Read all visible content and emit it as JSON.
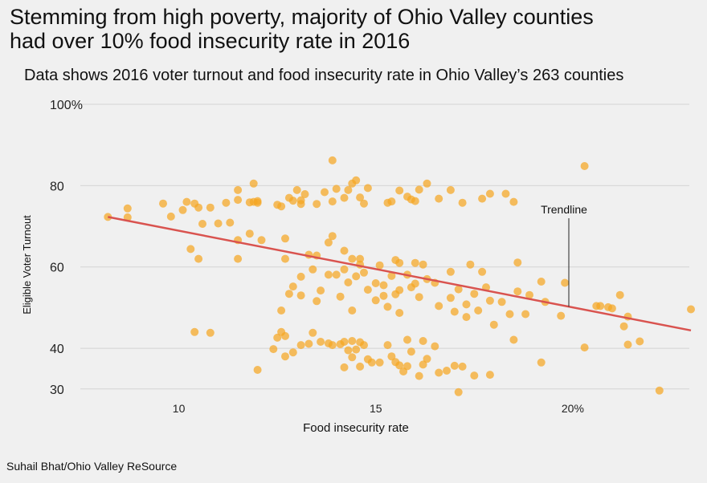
{
  "header": {
    "title_line1": "Stemming from high poverty, majority of Ohio Valley counties",
    "title_line2": "had over 10% food insecurity rate in 2016",
    "subtitle": "Data shows 2016 voter turnout and food insecurity rate in Ohio Valley’s 263 counties"
  },
  "footer": {
    "credit": "Suhail Bhat/Ohio Valley ReSource"
  },
  "colors": {
    "point": "#f5a623",
    "trendline": "#d9534f",
    "grid": "#d4d4d4"
  },
  "chart_data": {
    "type": "scatter",
    "title": "Stemming from high poverty, majority of Ohio Valley counties had over 10% food insecurity rate in 2016",
    "subtitle": "Data shows 2016 voter turnout and food insecurity rate in Ohio Valley’s 263 counties",
    "xlabel": "Food insecurity rate",
    "ylabel": "Eligible Voter Turnout",
    "xlim": [
      7.5,
      23
    ],
    "ylim": [
      27,
      100
    ],
    "x_ticks": [
      {
        "value": 10,
        "label": "10"
      },
      {
        "value": 15,
        "label": "15"
      },
      {
        "value": 20,
        "label": "20%"
      }
    ],
    "y_ticks": [
      {
        "value": 30,
        "label": "30"
      },
      {
        "value": 40,
        "label": "40"
      },
      {
        "value": 60,
        "label": "60"
      },
      {
        "value": 80,
        "label": "80"
      },
      {
        "value": 100,
        "label": "100%"
      }
    ],
    "trendline": {
      "label": "Trendline",
      "x": [
        8.2,
        23
      ],
      "y": [
        72.3,
        44.4
      ],
      "annotation_x": 19.9
    },
    "points": [
      [
        8.2,
        72.3
      ],
      [
        8.7,
        74.4
      ],
      [
        8.7,
        72.2
      ],
      [
        9.6,
        75.6
      ],
      [
        9.8,
        72.4
      ],
      [
        10.1,
        74.0
      ],
      [
        10.2,
        76.0
      ],
      [
        10.4,
        75.6
      ],
      [
        10.5,
        74.6
      ],
      [
        10.6,
        70.6
      ],
      [
        10.8,
        74.6
      ],
      [
        11.0,
        70.7
      ],
      [
        11.2,
        75.8
      ],
      [
        11.3,
        70.9
      ],
      [
        11.5,
        76.5
      ],
      [
        11.5,
        78.9
      ],
      [
        11.8,
        75.9
      ],
      [
        11.9,
        76.0
      ],
      [
        11.9,
        80.5
      ],
      [
        12.0,
        75.8
      ],
      [
        12.0,
        76.2
      ],
      [
        12.1,
        66.6
      ],
      [
        10.3,
        64.4
      ],
      [
        10.5,
        62.0
      ],
      [
        11.5,
        62.0
      ],
      [
        11.5,
        66.6
      ],
      [
        11.8,
        68.2
      ],
      [
        12.7,
        62.0
      ],
      [
        12.7,
        67.0
      ],
      [
        13.3,
        63.0
      ],
      [
        13.5,
        62.8
      ],
      [
        13.8,
        66.0
      ],
      [
        13.9,
        67.6
      ],
      [
        14.2,
        64.0
      ],
      [
        14.4,
        62.0
      ],
      [
        14.6,
        62.0
      ],
      [
        12.6,
        74.9
      ],
      [
        12.8,
        77.0
      ],
      [
        13.0,
        78.9
      ],
      [
        13.1,
        75.5
      ],
      [
        13.2,
        77.9
      ],
      [
        13.5,
        75.5
      ],
      [
        13.7,
        78.4
      ],
      [
        13.9,
        76.1
      ],
      [
        14.0,
        79.2
      ],
      [
        14.2,
        77.0
      ],
      [
        14.4,
        80.5
      ],
      [
        14.5,
        81.3
      ],
      [
        14.6,
        77.1
      ],
      [
        14.8,
        79.4
      ],
      [
        15.3,
        75.8
      ],
      [
        15.4,
        76.1
      ],
      [
        15.6,
        78.8
      ],
      [
        15.8,
        77.3
      ],
      [
        16.0,
        76.2
      ],
      [
        16.1,
        79.0
      ],
      [
        16.3,
        80.5
      ],
      [
        16.6,
        76.8
      ],
      [
        16.9,
        78.9
      ],
      [
        17.2,
        75.8
      ],
      [
        17.7,
        76.8
      ],
      [
        17.9,
        78.0
      ],
      [
        18.3,
        78.0
      ],
      [
        18.5,
        76.0
      ],
      [
        12.9,
        76.3
      ],
      [
        13.1,
        76.4
      ],
      [
        12.5,
        75.3
      ],
      [
        14.3,
        78.9
      ],
      [
        14.7,
        75.6
      ],
      [
        15.9,
        76.6
      ],
      [
        13.9,
        86.2
      ],
      [
        20.3,
        84.8
      ],
      [
        12.8,
        53.4
      ],
      [
        12.9,
        55.2
      ],
      [
        13.1,
        57.6
      ],
      [
        13.4,
        59.4
      ],
      [
        13.6,
        54.2
      ],
      [
        13.8,
        58.1
      ],
      [
        14.0,
        58.1
      ],
      [
        14.2,
        59.4
      ],
      [
        14.3,
        56.2
      ],
      [
        14.5,
        57.7
      ],
      [
        14.7,
        58.6
      ],
      [
        15.0,
        56.0
      ],
      [
        15.2,
        55.5
      ],
      [
        15.4,
        57.8
      ],
      [
        15.5,
        53.3
      ],
      [
        15.6,
        54.3
      ],
      [
        15.8,
        58.1
      ],
      [
        15.9,
        55.0
      ],
      [
        16.0,
        55.9
      ],
      [
        16.3,
        57.0
      ],
      [
        16.5,
        56.1
      ],
      [
        16.9,
        52.4
      ],
      [
        17.1,
        54.5
      ],
      [
        17.3,
        50.8
      ],
      [
        17.5,
        53.4
      ],
      [
        17.8,
        55.0
      ],
      [
        17.9,
        51.7
      ],
      [
        18.2,
        51.4
      ],
      [
        18.6,
        54.0
      ],
      [
        18.9,
        53.1
      ],
      [
        19.2,
        56.4
      ],
      [
        19.3,
        51.4
      ],
      [
        19.8,
        56.1
      ],
      [
        20.6,
        50.4
      ],
      [
        20.9,
        50.1
      ],
      [
        21.2,
        53.1
      ],
      [
        21.4,
        47.8
      ],
      [
        23.0,
        49.6
      ],
      [
        12.6,
        49.3
      ],
      [
        13.1,
        53.0
      ],
      [
        14.1,
        52.7
      ],
      [
        14.4,
        49.3
      ],
      [
        15.0,
        51.8
      ],
      [
        15.3,
        50.2
      ],
      [
        15.6,
        48.7
      ],
      [
        16.1,
        52.6
      ],
      [
        16.6,
        50.4
      ],
      [
        17.0,
        49.0
      ],
      [
        17.6,
        49.3
      ],
      [
        18.0,
        45.8
      ],
      [
        18.4,
        48.4
      ],
      [
        18.8,
        48.4
      ],
      [
        19.7,
        48.0
      ],
      [
        20.7,
        50.4
      ],
      [
        21.0,
        49.8
      ],
      [
        21.3,
        45.4
      ],
      [
        17.3,
        47.7
      ],
      [
        14.8,
        54.4
      ],
      [
        15.2,
        52.9
      ],
      [
        13.5,
        51.6
      ],
      [
        16.9,
        58.8
      ],
      [
        17.7,
        58.8
      ],
      [
        16.2,
        60.6
      ],
      [
        15.1,
        60.4
      ],
      [
        14.6,
        60.6
      ],
      [
        15.6,
        61.0
      ],
      [
        16.0,
        61.0
      ],
      [
        17.4,
        60.6
      ],
      [
        18.6,
        61.1
      ],
      [
        15.5,
        61.7
      ],
      [
        10.4,
        44.0
      ],
      [
        10.8,
        43.8
      ],
      [
        12.4,
        39.8
      ],
      [
        12.5,
        42.6
      ],
      [
        12.7,
        43.0
      ],
      [
        12.6,
        44.0
      ],
      [
        12.7,
        38.0
      ],
      [
        12.9,
        39.0
      ],
      [
        13.1,
        40.8
      ],
      [
        13.3,
        41.1
      ],
      [
        13.4,
        43.8
      ],
      [
        13.6,
        41.6
      ],
      [
        13.8,
        41.2
      ],
      [
        13.9,
        40.8
      ],
      [
        14.1,
        41.0
      ],
      [
        14.2,
        41.6
      ],
      [
        14.3,
        39.5
      ],
      [
        14.4,
        37.8
      ],
      [
        14.5,
        39.7
      ],
      [
        14.6,
        41.5
      ],
      [
        14.7,
        40.8
      ],
      [
        14.8,
        37.3
      ],
      [
        14.9,
        36.5
      ],
      [
        15.1,
        36.5
      ],
      [
        15.3,
        40.8
      ],
      [
        15.4,
        38.0
      ],
      [
        15.5,
        36.6
      ],
      [
        15.6,
        35.8
      ],
      [
        15.7,
        34.3
      ],
      [
        15.8,
        35.6
      ],
      [
        15.9,
        39.2
      ],
      [
        16.1,
        33.2
      ],
      [
        16.2,
        36.0
      ],
      [
        16.3,
        37.4
      ],
      [
        16.5,
        40.5
      ],
      [
        16.6,
        34.0
      ],
      [
        16.8,
        34.5
      ],
      [
        17.0,
        35.7
      ],
      [
        17.2,
        35.5
      ],
      [
        17.5,
        33.3
      ],
      [
        17.9,
        33.5
      ],
      [
        17.1,
        29.2
      ],
      [
        22.2,
        29.6
      ],
      [
        12.0,
        34.7
      ],
      [
        15.8,
        42.1
      ],
      [
        16.2,
        41.8
      ],
      [
        14.4,
        41.8
      ],
      [
        19.2,
        36.5
      ],
      [
        18.5,
        42.1
      ],
      [
        20.3,
        40.2
      ],
      [
        21.4,
        40.9
      ],
      [
        21.7,
        41.7
      ],
      [
        14.2,
        35.3
      ],
      [
        14.6,
        35.5
      ]
    ]
  }
}
